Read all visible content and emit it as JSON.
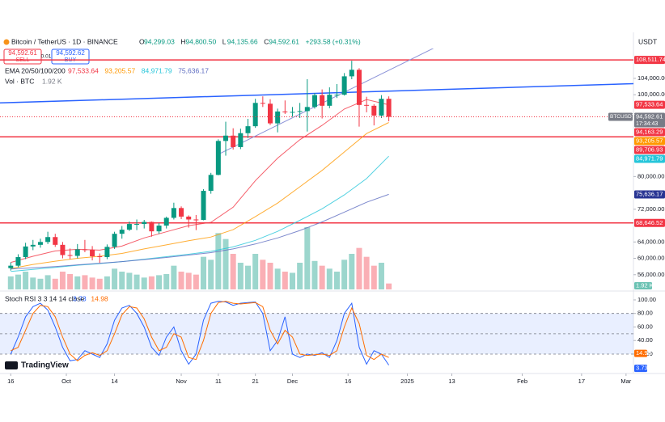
{
  "header": {
    "symbol": "Bitcoin / TetherUS · 1D · BINANCE",
    "ohlc": [
      {
        "k": "O",
        "v": "94,299.03"
      },
      {
        "k": "H",
        "v": "94,800.50"
      },
      {
        "k": "L",
        "v": "94,135.66"
      },
      {
        "k": "C",
        "v": "94,592.61"
      }
    ],
    "change": "+293.58 (+0.31%)",
    "currency": "USDT",
    "logo": "TradingView",
    "trade": {
      "sell_price": "94,592.61",
      "sell": "SELL",
      "spread": "0.01",
      "buy_price": "94,592.62",
      "buy": "BUY"
    }
  },
  "chart_data": [
    {
      "type": "candlestick",
      "xlim": [
        -2.9,
        168
      ],
      "ylim": [
        52400,
        111300
      ],
      "up_color": "#089981",
      "down_color": "#f23645",
      "x": [
        0,
        2,
        4,
        6,
        8,
        10,
        12,
        14,
        16,
        18,
        20,
        22,
        24,
        26,
        28,
        30,
        32,
        34,
        36,
        38,
        40,
        42,
        44,
        46,
        48,
        50,
        52,
        54,
        56,
        58,
        60,
        62,
        64,
        66,
        68,
        70,
        72,
        74,
        76,
        78,
        80,
        82,
        84,
        86,
        88,
        90,
        92,
        94,
        96,
        98,
        100,
        102
      ],
      "open": [
        57600,
        58200,
        60300,
        62900,
        63300,
        64000,
        65200,
        63300,
        60800,
        60600,
        62200,
        62100,
        60500,
        60300,
        62800,
        66000,
        67000,
        68400,
        68400,
        68900,
        66600,
        68000,
        69900,
        72300,
        70200,
        69500,
        69400,
        76500,
        80400,
        88700,
        90000,
        87200,
        90600,
        92300,
        98000,
        97800,
        93000,
        95900,
        95700,
        95800,
        96000,
        97000,
        99900,
        97300,
        100000,
        100000,
        104500,
        106100,
        97500,
        97300,
        94900,
        99000
      ],
      "high": [
        59000,
        61000,
        63800,
        64500,
        64800,
        66500,
        66000,
        64000,
        62400,
        63500,
        64500,
        63000,
        61200,
        63400,
        66500,
        67900,
        69000,
        69500,
        69400,
        69000,
        68600,
        70200,
        73600,
        72700,
        70500,
        70600,
        76900,
        80900,
        89100,
        93400,
        91800,
        91700,
        94100,
        99000,
        99600,
        98900,
        96600,
        98600,
        97000,
        98000,
        103800,
        100400,
        101300,
        101800,
        102600,
        105300,
        108300,
        106500,
        99500,
        97700,
        99900,
        99600
      ],
      "low": [
        57000,
        57800,
        59800,
        62000,
        62600,
        63500,
        62800,
        60000,
        59800,
        60000,
        61500,
        59500,
        58900,
        59800,
        62300,
        64800,
        66700,
        66900,
        67300,
        65300,
        66000,
        67300,
        69500,
        69600,
        67500,
        66900,
        69300,
        75800,
        80300,
        85100,
        86600,
        86700,
        89400,
        91900,
        97000,
        92600,
        90800,
        95300,
        94600,
        94300,
        91000,
        96600,
        94200,
        96700,
        99200,
        99800,
        103800,
        92200,
        95700,
        92500,
        94300,
        93500
      ],
      "close": [
        58200,
        60300,
        62900,
        63300,
        64000,
        65200,
        63300,
        60800,
        60600,
        62200,
        62100,
        60500,
        60300,
        62800,
        66000,
        67000,
        68400,
        68400,
        68900,
        66600,
        68000,
        69900,
        72300,
        70200,
        69500,
        69400,
        76500,
        80400,
        88700,
        90000,
        87200,
        90600,
        92300,
        98000,
        97800,
        93000,
        95900,
        95700,
        95800,
        96000,
        97000,
        99900,
        97300,
        100000,
        100000,
        104500,
        106100,
        97500,
        97300,
        94900,
        99000,
        94592.61
      ],
      "volume": {
        "label": "Vol · BTC",
        "value_label": "1.92 K",
        "vlim": [
          0,
          120
        ],
        "label_color": "#787b86",
        "values": [
          22,
          25,
          30,
          20,
          18,
          24,
          18,
          30,
          26,
          22,
          24,
          20,
          18,
          22,
          35,
          30,
          28,
          25,
          20,
          22,
          24,
          26,
          40,
          30,
          28,
          25,
          55,
          50,
          95,
          85,
          60,
          45,
          40,
          60,
          50,
          45,
          35,
          30,
          28,
          45,
          105,
          48,
          40,
          35,
          30,
          50,
          60,
          70,
          55,
          40,
          45,
          10
        ]
      },
      "ema": {
        "label": "EMA 20/50/100/200",
        "x": [
          0,
          6,
          12,
          18,
          24,
          30,
          36,
          42,
          48,
          54,
          60,
          66,
          72,
          78,
          84,
          90,
          96,
          102
        ],
        "series": [
          {
            "color": "#f23645",
            "value_label": "97,533.64",
            "values": [
              59000,
              60500,
              61800,
              62200,
              62000,
              63000,
              65000,
              66500,
              68000,
              68800,
              72500,
              79000,
              84500,
              89000,
              92500,
              96500,
              98800,
              97533.64
            ]
          },
          {
            "color": "#ff9800",
            "value_label": "93,205.57",
            "values": [
              57500,
              58500,
              59300,
              60000,
              60500,
              61200,
              62300,
              63300,
              64300,
              65200,
              67000,
              70200,
              73500,
              77500,
              81500,
              86000,
              90500,
              93205.57
            ]
          },
          {
            "color": "#26c6da",
            "value_label": "84,971.79",
            "values": [
              56800,
              57300,
              57800,
              58300,
              58700,
              59200,
              59800,
              60400,
              61000,
              61700,
              62800,
              64400,
              66600,
              69300,
              72100,
              75500,
              79500,
              84971.79
            ]
          },
          {
            "color": "#5c6bc0",
            "value_label": "75,636.17",
            "values": [
              57400,
              57700,
              58000,
              58400,
              58800,
              59200,
              59700,
              60200,
              60800,
              61400,
              62300,
              63500,
              65000,
              66800,
              68900,
              71300,
              73700,
              75636.17
            ]
          }
        ]
      },
      "hlines": [
        {
          "value": 108511.74,
          "label": "108,511.74",
          "color": "#f23645"
        },
        {
          "value": 89706.93,
          "label": "89,706.93",
          "color": "#f23645"
        },
        {
          "value": 68646.52,
          "label": "68,646.52",
          "color": "#f23645"
        }
      ],
      "trendlines": [
        {
          "color": "#2962ff",
          "x": [
            -2.9,
            168
          ],
          "values": [
            98000,
            102700
          ]
        },
        {
          "color": "#8c93d8",
          "x": [
            56.5,
            121.5
          ],
          "values": [
            85650,
            114700
          ]
        }
      ],
      "last_price": {
        "value": 94592.61,
        "label": "94,592.61",
        "tag": "BTCUSDT",
        "countdown": "17:34:43",
        "color": "#787b86"
      },
      "price_labels": [
        {
          "value": 97533.64,
          "label": "97,533.64",
          "color": "#f23645"
        },
        {
          "value": 94163.29,
          "label": "94,163.29",
          "color": "#f23645"
        },
        {
          "value": 93205.57,
          "label": "93,205.57",
          "color": "#ff9800"
        },
        {
          "value": 84971.79,
          "label": "84,971.79",
          "color": "#26c6da"
        },
        {
          "value": 75636.17,
          "label": "75,636.17",
          "color": "#283593"
        }
      ],
      "yticks": [
        {
          "value": 56000,
          "label": "56,000.00"
        },
        {
          "value": 60000,
          "label": "60,000.00"
        },
        {
          "value": 64000,
          "label": "64,000.00"
        },
        {
          "value": 72000,
          "label": "72,000.00"
        },
        {
          "value": 80000,
          "label": "80,000.00"
        },
        {
          "value": 100000,
          "label": "100,000.00"
        },
        {
          "value": 104000,
          "label": "104,000.00"
        }
      ],
      "xticks": [
        {
          "value": 0,
          "label": "16"
        },
        {
          "value": 15,
          "label": "Oct"
        },
        {
          "value": 28,
          "label": "14"
        },
        {
          "value": 46,
          "label": "Nov"
        },
        {
          "value": 56,
          "label": "11"
        },
        {
          "value": 66,
          "label": "21"
        },
        {
          "value": 76,
          "label": "Dec"
        },
        {
          "value": 91,
          "label": "16"
        },
        {
          "value": 107,
          "label": "2025"
        },
        {
          "value": 119,
          "label": "13"
        },
        {
          "value": 138,
          "label": "Feb"
        },
        {
          "value": 154,
          "label": "17"
        },
        {
          "value": 166,
          "label": "Mar"
        }
      ]
    },
    {
      "type": "line",
      "title": "Stoch RSI 3 3 14 14 close",
      "xlim": [
        -2.9,
        168
      ],
      "ylim": [
        -8.7,
        110.7
      ],
      "band": [
        20,
        80
      ],
      "levels": [
        80,
        50,
        20
      ],
      "x": [
        0,
        2,
        4,
        6,
        8,
        10,
        12,
        14,
        16,
        18,
        20,
        22,
        24,
        26,
        28,
        30,
        32,
        34,
        36,
        38,
        40,
        42,
        44,
        46,
        48,
        50,
        52,
        54,
        56,
        58,
        60,
        62,
        64,
        66,
        68,
        70,
        72,
        74,
        76,
        78,
        80,
        82,
        84,
        86,
        88,
        90,
        92,
        94,
        96,
        98,
        100,
        102
      ],
      "series": [
        {
          "color": "#2962ff",
          "value_label": "3.73",
          "values": [
            20,
            45,
            75,
            90,
            95,
            85,
            60,
            30,
            10,
            12,
            25,
            20,
            15,
            35,
            70,
            88,
            92,
            80,
            60,
            30,
            18,
            45,
            60,
            25,
            5,
            20,
            70,
            95,
            98,
            97,
            92,
            95,
            96,
            97,
            80,
            25,
            40,
            75,
            20,
            15,
            20,
            18,
            22,
            15,
            40,
            80,
            95,
            30,
            5,
            25,
            20,
            3.73
          ]
        },
        {
          "color": "#ff6d00",
          "value_label": "14.98",
          "values": [
            25,
            30,
            55,
            80,
            92,
            90,
            75,
            45,
            20,
            10,
            18,
            22,
            18,
            25,
            50,
            78,
            90,
            88,
            72,
            45,
            25,
            30,
            50,
            45,
            15,
            12,
            40,
            80,
            96,
            98,
            95,
            94,
            95,
            96,
            90,
            55,
            35,
            55,
            45,
            20,
            18,
            19,
            20,
            18,
            25,
            60,
            88,
            65,
            18,
            12,
            20,
            14.98
          ]
        }
      ],
      "yticks": [
        {
          "value": 100,
          "label": "100.00"
        },
        {
          "value": 80,
          "label": "80.00"
        },
        {
          "value": 60,
          "label": "60.00"
        },
        {
          "value": 40,
          "label": "40.00"
        },
        {
          "value": 20,
          "label": "20.00"
        }
      ]
    }
  ]
}
